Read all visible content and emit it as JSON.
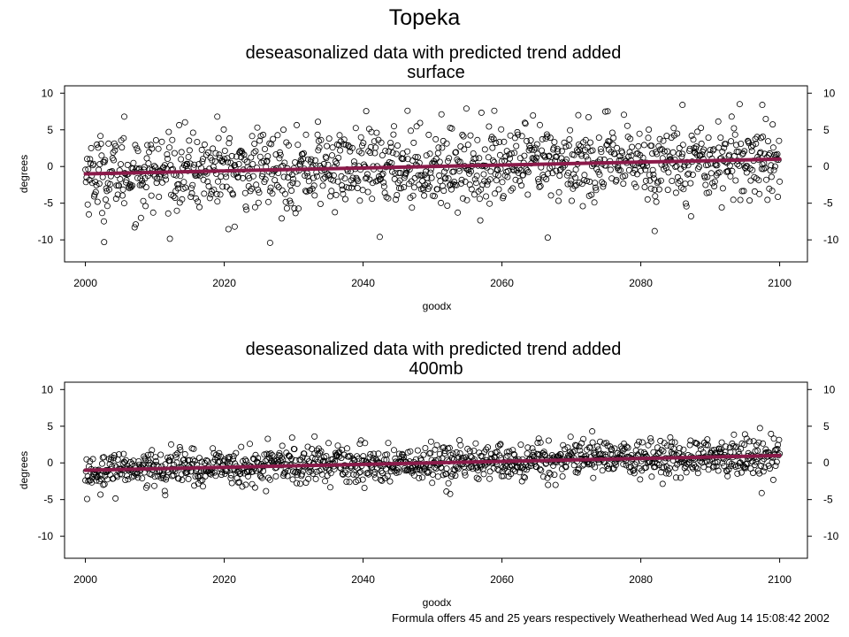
{
  "page": {
    "title": "Topeka",
    "footer": "Formula offers 45 and 25 years respectively Weatherhead  Wed Aug 14 15:08:42 2002"
  },
  "colors": {
    "trend": "#8b1a4a",
    "points": "#000000",
    "frame": "#000000"
  },
  "chart_data": [
    {
      "type": "scatter",
      "title": "deseasonalized data with predicted trend added",
      "subtitle": "surface",
      "xlabel": "goodx",
      "ylabel": "degrees",
      "xlim": [
        1997,
        2104
      ],
      "ylim": [
        -13,
        11
      ],
      "xticks": [
        2000,
        2020,
        2040,
        2060,
        2080,
        2100
      ],
      "yticks": [
        10,
        5,
        0,
        -5,
        -10
      ],
      "ytick_labels": [
        "10",
        "5",
        "0",
        "-5",
        "-10"
      ],
      "grid": false,
      "trend": {
        "x": [
          2000,
          2100
        ],
        "y": [
          -1.0,
          1.0
        ]
      },
      "scatter_spread": 2.6,
      "points_count": 1200,
      "outliers": [
        {
          "x": 2002.7,
          "y": -10.3
        },
        {
          "x": 2026.6,
          "y": -10.4
        },
        {
          "x": 2042.4,
          "y": -9.6
        },
        {
          "x": 2066.6,
          "y": -9.7
        },
        {
          "x": 2082.0,
          "y": -8.8
        },
        {
          "x": 2005.6,
          "y": 6.8
        },
        {
          "x": 2019.0,
          "y": 6.8
        },
        {
          "x": 2046.4,
          "y": 7.6
        },
        {
          "x": 2058.9,
          "y": 7.6
        },
        {
          "x": 2086.0,
          "y": 8.4
        },
        {
          "x": 2097.5,
          "y": 8.4
        },
        {
          "x": 2033.5,
          "y": 6.1
        },
        {
          "x": 2071.0,
          "y": 7.0
        },
        {
          "x": 2021.5,
          "y": -8.2
        },
        {
          "x": 2008.0,
          "y": -7.0
        }
      ]
    },
    {
      "type": "scatter",
      "title": "deseasonalized data with predicted trend added",
      "subtitle": "400mb",
      "xlabel": "goodx",
      "ylabel": "degrees",
      "xlim": [
        1997,
        2104
      ],
      "ylim": [
        -13,
        11
      ],
      "xticks": [
        2000,
        2020,
        2040,
        2060,
        2080,
        2100
      ],
      "yticks": [
        10,
        5,
        0,
        -5,
        -10
      ],
      "ytick_labels": [
        "10",
        "5",
        "0",
        "-5",
        "-10"
      ],
      "grid": false,
      "trend": {
        "x": [
          2000,
          2100
        ],
        "y": [
          -1.0,
          1.0
        ]
      },
      "scatter_spread": 1.3,
      "points_count": 1200,
      "outliers": [
        {
          "x": 2073.0,
          "y": 4.3
        },
        {
          "x": 2033.0,
          "y": 3.6
        },
        {
          "x": 2011.5,
          "y": -4.4
        },
        {
          "x": 2052.0,
          "y": -3.9
        },
        {
          "x": 2095.0,
          "y": 3.9
        }
      ]
    }
  ]
}
